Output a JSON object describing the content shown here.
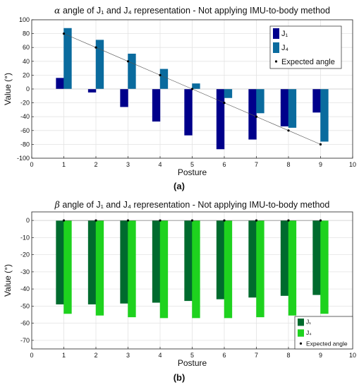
{
  "chart_data": [
    {
      "type": "bar",
      "title_prefix": "α",
      "title_rest": " angle of J₁ and J₄ representation - Not applying IMU-to-body method",
      "xlabel": "Posture",
      "ylabel": "Value (°)",
      "panel_label": "(a)",
      "xlim": [
        0,
        10
      ],
      "ylim": [
        -100,
        100
      ],
      "xticks": [
        "0",
        "1",
        "2",
        "3",
        "4",
        "5",
        "6",
        "7",
        "8",
        "9",
        "10"
      ],
      "yticks": [
        "-100",
        "-80",
        "-60",
        "-40",
        "-20",
        "0",
        "20",
        "40",
        "60",
        "80",
        "100"
      ],
      "grid": true,
      "legend_position": "top-right",
      "categories": [
        1,
        2,
        3,
        4,
        5,
        6,
        7,
        8,
        9
      ],
      "series": [
        {
          "name": "J₁",
          "color": "#00008b",
          "values": [
            16,
            -5,
            -26,
            -47,
            -67,
            -87,
            -73,
            -54,
            -34
          ]
        },
        {
          "name": "J₄",
          "color": "#0a6b9e",
          "values": [
            88,
            71,
            51,
            29,
            8,
            -13,
            -35,
            -56,
            -76
          ]
        }
      ],
      "expected": {
        "name": "Expected angle",
        "color": "#000000",
        "values": [
          80,
          60,
          40,
          20,
          0,
          -20,
          -40,
          -60,
          -80
        ]
      }
    },
    {
      "type": "bar",
      "title_prefix": "β",
      "title_rest": " angle of J₁ and J₄ representation - Not applying IMU-to-body method",
      "xlabel": "Posture",
      "ylabel": "Value (°)",
      "panel_label": "(b)",
      "xlim": [
        0,
        10
      ],
      "ylim": [
        -75,
        5
      ],
      "xticks": [
        "0",
        "1",
        "2",
        "3",
        "4",
        "5",
        "6",
        "7",
        "8",
        "9",
        "10"
      ],
      "yticks": [
        "-70",
        "-60",
        "-50",
        "-40",
        "-30",
        "-20",
        "-10",
        "0"
      ],
      "grid": true,
      "legend_position": "bottom-right",
      "categories": [
        1,
        2,
        3,
        4,
        5,
        6,
        7,
        8,
        9
      ],
      "series": [
        {
          "name": "J₁",
          "color": "#006b2e",
          "values": [
            -49,
            -49,
            -48.5,
            -48,
            -47,
            -46,
            -45,
            -44,
            -43.5
          ]
        },
        {
          "name": "J₄",
          "color": "#1ed21e",
          "values": [
            -54.5,
            -55.5,
            -56.5,
            -57,
            -57,
            -57,
            -56.5,
            -55.5,
            -54.5
          ]
        }
      ],
      "expected": {
        "name": "Expected angle",
        "color": "#000000",
        "values": [
          0,
          0,
          0,
          0,
          0,
          0,
          0,
          0,
          0
        ]
      }
    }
  ]
}
